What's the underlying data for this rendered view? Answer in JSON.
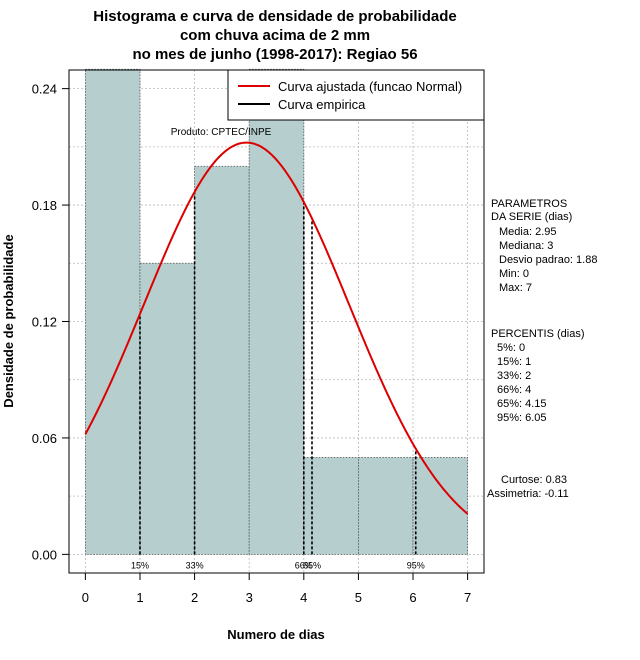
{
  "chart_data": {
    "type": "histogram",
    "title_lines": [
      "Histograma e curva de densidade de probabilidade",
      "com chuva acima de 2 mm",
      "no mes de junho (1998-2017): Regiao 56"
    ],
    "xlabel": "Numero de dias",
    "ylabel": "Densidade de probabilidade",
    "xlim": [
      -0.3,
      7.3
    ],
    "ylim": [
      -0.0096,
      0.2496
    ],
    "x_ticks": [
      0,
      1,
      2,
      3,
      4,
      5,
      6,
      7
    ],
    "y_ticks": [
      0.0,
      0.06,
      0.12,
      0.18,
      0.24
    ],
    "y_tick_labels": [
      "0.00",
      "0.06",
      "0.12",
      "0.18",
      "0.24"
    ],
    "grid": true,
    "bins": [
      {
        "from": 0,
        "to": 1,
        "density": 0.25
      },
      {
        "from": 1,
        "to": 2,
        "density": 0.15
      },
      {
        "from": 2,
        "to": 3,
        "density": 0.2
      },
      {
        "from": 3,
        "to": 4,
        "density": 0.25
      },
      {
        "from": 4,
        "to": 5,
        "density": 0.05
      },
      {
        "from": 5,
        "to": 6,
        "density": 0.05
      },
      {
        "from": 6,
        "to": 7,
        "density": 0.05
      }
    ],
    "normal_fit": {
      "mean": 2.95,
      "sd": 1.88,
      "color": "#dd0000"
    },
    "bar_color": "#b6cece",
    "percentile_lines": [
      {
        "x": 1,
        "label": "15%"
      },
      {
        "x": 2,
        "label": "33%"
      },
      {
        "x": 4,
        "label": "66%"
      },
      {
        "x": 4.15,
        "label": "65%"
      },
      {
        "x": 6.05,
        "label": "95%"
      }
    ],
    "legend": {
      "position": "top-right",
      "entries": [
        {
          "label": "Curva ajustada (funcao Normal)",
          "color": "#dd0000"
        },
        {
          "label": "Curva empirica",
          "color": "#000000"
        }
      ]
    },
    "credit": "Produto: CPTEC/INPE",
    "parameters": {
      "heading": [
        "PARAMETROS",
        "DA SERIE (dias)"
      ],
      "lines": [
        "Media: 2.95",
        "Mediana: 3",
        "Desvio padrao: 1.88",
        "Min: 0",
        "Max: 7"
      ]
    },
    "percentiles": {
      "heading": "PERCENTIS (dias)",
      "lines": [
        "5%: 0",
        "15%: 1",
        "33%: 2",
        "66%: 4",
        "65%: 4.15",
        "95%: 6.05"
      ]
    },
    "shape": {
      "lines": [
        "Curtose: 0.83",
        "Assimetria: -0.11"
      ]
    }
  }
}
